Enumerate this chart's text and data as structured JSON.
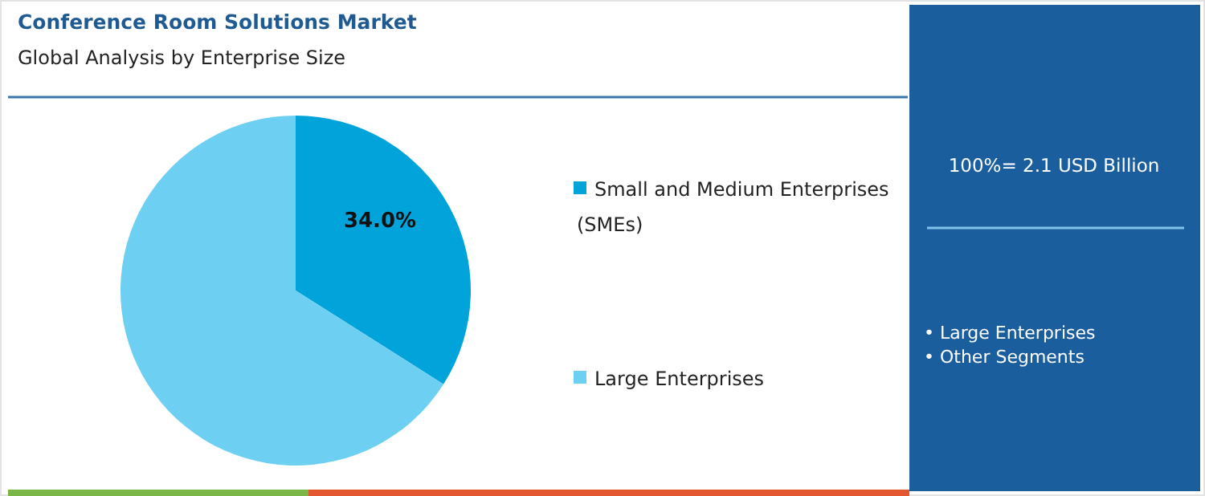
{
  "chart_data": {
    "type": "pie",
    "title": "Conference Room Solutions Market",
    "subtitle": "Global Analysis by Enterprise Size",
    "categories": [
      "Small and Medium Enterprises (SMEs)",
      "Large Enterprises"
    ],
    "values": [
      34.0,
      66.0
    ],
    "colors": [
      "#00a3da",
      "#6dcff2"
    ],
    "value_labels": [
      "34.0%",
      null
    ],
    "legend": "right",
    "annotations": [
      "100%= 2.1 USD Billion",
      "• Large Enterprises",
      "• Other Segments"
    ]
  }
}
